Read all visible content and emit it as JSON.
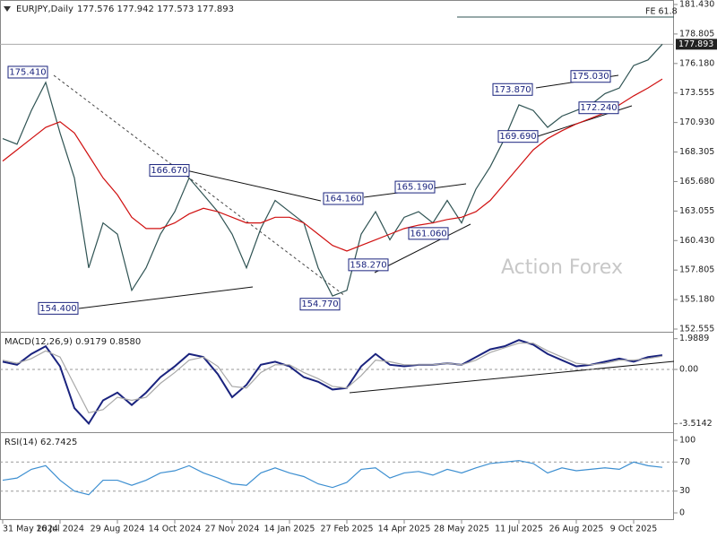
{
  "chart_data": [
    {
      "type": "line",
      "title": "EURJPY,Daily",
      "subtitle": "177.576 177.942 177.573 177.893",
      "categories": [
        "31 May 2024",
        null,
        null,
        null,
        "16 Jul 2024",
        null,
        null,
        null,
        "29 Aug 2024",
        null,
        null,
        null,
        "14 Oct 2024",
        null,
        null,
        null,
        "27 Nov 2024",
        null,
        null,
        null,
        "14 Jan 2025",
        null,
        null,
        null,
        "27 Feb 2025",
        null,
        null,
        null,
        "14 Apr 2025",
        null,
        null,
        null,
        "28 May 2025",
        null,
        null,
        null,
        "11 Jul 2025",
        null,
        null,
        null,
        "26 Aug 2025",
        null,
        null,
        null,
        "9 Oct 2025",
        null,
        null
      ],
      "series": [
        {
          "color": "#2f5353",
          "values": [
            169.5,
            169.0,
            172.0,
            174.5,
            170.0,
            166.0,
            158.0,
            162.0,
            161.0,
            156.0,
            158.0,
            161.0,
            163.0,
            166.0,
            164.5,
            163.0,
            161.0,
            158.0,
            161.5,
            164.0,
            163.0,
            162.0,
            158.0,
            155.5,
            156.0,
            161.0,
            163.0,
            160.5,
            162.5,
            163.0,
            162.0,
            164.0,
            162.0,
            165.0,
            167.0,
            169.5,
            172.5,
            172.0,
            170.5,
            171.5,
            172.0,
            172.5,
            173.5,
            174.0,
            176.0,
            176.5,
            177.893
          ]
        },
        {
          "color": "#d01010",
          "values": [
            167.5,
            168.5,
            169.5,
            170.5,
            171.0,
            170.0,
            168.0,
            166.0,
            164.5,
            162.5,
            161.5,
            161.5,
            162.0,
            162.8,
            163.3,
            163.0,
            162.5,
            162.0,
            162.0,
            162.5,
            162.5,
            162.0,
            161.0,
            160.0,
            159.5,
            160.0,
            160.5,
            161.0,
            161.5,
            161.8,
            162.0,
            162.3,
            162.5,
            163.0,
            164.0,
            165.5,
            167.0,
            168.5,
            169.5,
            170.2,
            170.8,
            171.3,
            171.8,
            172.5,
            173.3,
            174.0,
            174.8
          ]
        }
      ],
      "ylim": [
        152.555,
        181.43
      ],
      "yticks": [
        {
          "value": 181.43,
          "label": "181.430"
        },
        {
          "value": 178.805,
          "label": "178.805"
        },
        {
          "value": 176.18,
          "label": "176.180"
        },
        173.555,
        {
          "value": 170.93,
          "label": "170.930"
        },
        168.305,
        {
          "value": 165.68,
          "label": "165.680"
        },
        163.055,
        {
          "value": 160.43,
          "label": "160.430"
        },
        157.805,
        {
          "value": 155.18,
          "label": "155.180"
        },
        152.555
      ],
      "last": {
        "value": 177.893,
        "label": "177.893"
      },
      "reference": {
        "value": 180.31,
        "label": "FE 61.8"
      },
      "annotations": [
        {
          "value": 175.41,
          "label": "175.410"
        },
        {
          "value": 166.67,
          "label": "166.670"
        },
        {
          "value": 164.16,
          "label": "164.160"
        },
        {
          "value": 165.19,
          "label": "165.190"
        },
        {
          "value": 154.4,
          "label": "154.400"
        },
        {
          "value": 154.77,
          "label": "154.770"
        },
        {
          "value": 158.27,
          "label": "158.270"
        },
        {
          "value": 161.06,
          "label": "161.060"
        },
        {
          "value": 173.87,
          "label": "173.870"
        },
        {
          "value": 175.03,
          "label": "175.030"
        },
        {
          "value": 169.69,
          "label": "169.690"
        },
        {
          "value": 172.24,
          "label": "172.240"
        }
      ],
      "watermark": "Action Forex"
    },
    {
      "type": "line",
      "title": "MACD(12,26,9) 0.9179 0.8580",
      "series": [
        {
          "color": "#1a237e",
          "values": [
            0.5,
            0.3,
            1.0,
            1.5,
            0.2,
            -2.5,
            -3.5,
            -2.0,
            -1.5,
            -2.3,
            -1.5,
            -0.5,
            0.2,
            1.0,
            0.8,
            -0.3,
            -1.8,
            -1.0,
            0.3,
            0.5,
            0.2,
            -0.5,
            -0.8,
            -1.3,
            -1.2,
            0.2,
            1.0,
            0.3,
            0.2,
            0.3,
            0.3,
            0.4,
            0.3,
            0.8,
            1.3,
            1.5,
            1.9,
            1.6,
            1.0,
            0.6,
            0.2,
            0.3,
            0.5,
            0.7,
            0.5,
            0.8,
            0.9179
          ]
        },
        {
          "color": "#a8a8a8",
          "values": [
            0.6,
            0.4,
            0.7,
            1.2,
            0.8,
            -1.0,
            -2.8,
            -2.6,
            -1.8,
            -2.0,
            -1.8,
            -0.9,
            -0.2,
            0.6,
            0.8,
            0.2,
            -1.1,
            -1.2,
            -0.2,
            0.3,
            0.3,
            -0.2,
            -0.6,
            -1.1,
            -1.2,
            -0.4,
            0.6,
            0.5,
            0.3,
            0.3,
            0.3,
            0.4,
            0.3,
            0.6,
            1.1,
            1.4,
            1.7,
            1.7,
            1.2,
            0.8,
            0.4,
            0.3,
            0.4,
            0.6,
            0.6,
            0.7,
            0.858
          ]
        }
      ],
      "ylim": [
        -4.06,
        2.32
      ],
      "yticks": [
        1.9889,
        {
          "value": 0,
          "label": "0.00"
        },
        -3.5142
      ],
      "levels": [
        0
      ]
    },
    {
      "type": "line",
      "title": "RSI(14) 62.7425",
      "series": [
        {
          "color": "#3d8fd1",
          "values": [
            45,
            48,
            60,
            65,
            45,
            30,
            25,
            45,
            45,
            38,
            45,
            55,
            58,
            65,
            55,
            48,
            40,
            38,
            55,
            62,
            55,
            50,
            40,
            35,
            42,
            60,
            62,
            48,
            55,
            57,
            52,
            60,
            55,
            62,
            68,
            70,
            72,
            68,
            55,
            62,
            58,
            60,
            62,
            60,
            70,
            65,
            62.7425
          ]
        }
      ],
      "ylim": [
        0,
        100
      ],
      "yticks": [
        100,
        70,
        30,
        0
      ],
      "levels": [
        70,
        30
      ]
    }
  ]
}
